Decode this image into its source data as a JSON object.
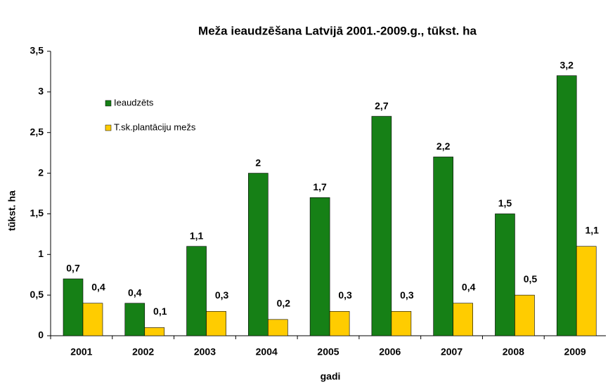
{
  "chart_data": {
    "type": "bar",
    "title": "Meža ieaudzēšana Latvijā 2001.-2009.g., tūkst. ha",
    "xlabel": "gadi",
    "ylabel": "tūkst. ha",
    "categories": [
      "2001",
      "2002",
      "2003",
      "2004",
      "2005",
      "2006",
      "2007",
      "2008",
      "2009"
    ],
    "series": [
      {
        "name": "Ieaudzēts",
        "color": "#168016",
        "values": [
          0.7,
          0.4,
          1.1,
          2,
          1.7,
          2.7,
          2.2,
          1.5,
          3.2
        ],
        "value_labels": [
          "0,7",
          "0,4",
          "1,1",
          "2",
          "1,7",
          "2,7",
          "2,2",
          "1,5",
          "3,2"
        ]
      },
      {
        "name": "T.sk.plantāciju mežs",
        "color": "#ffcc00",
        "values": [
          0.4,
          0.1,
          0.3,
          0.2,
          0.3,
          0.3,
          0.4,
          0.5,
          1.1
        ],
        "value_labels": [
          "0,4",
          "0,1",
          "0,3",
          "0,2",
          "0,3",
          "0,3",
          "0,4",
          "0,5",
          "1,1"
        ]
      }
    ],
    "ylim": [
      0,
      3.5
    ],
    "yticks": [
      0,
      {
        "value": 0.5,
        "label": "0,5"
      },
      1,
      {
        "value": 1.5,
        "label": "1,5"
      },
      2,
      {
        "value": 2.5,
        "label": "2,5"
      },
      3,
      {
        "value": 3.5,
        "label": "3,5"
      }
    ],
    "grid": false,
    "legend": "upper left"
  }
}
